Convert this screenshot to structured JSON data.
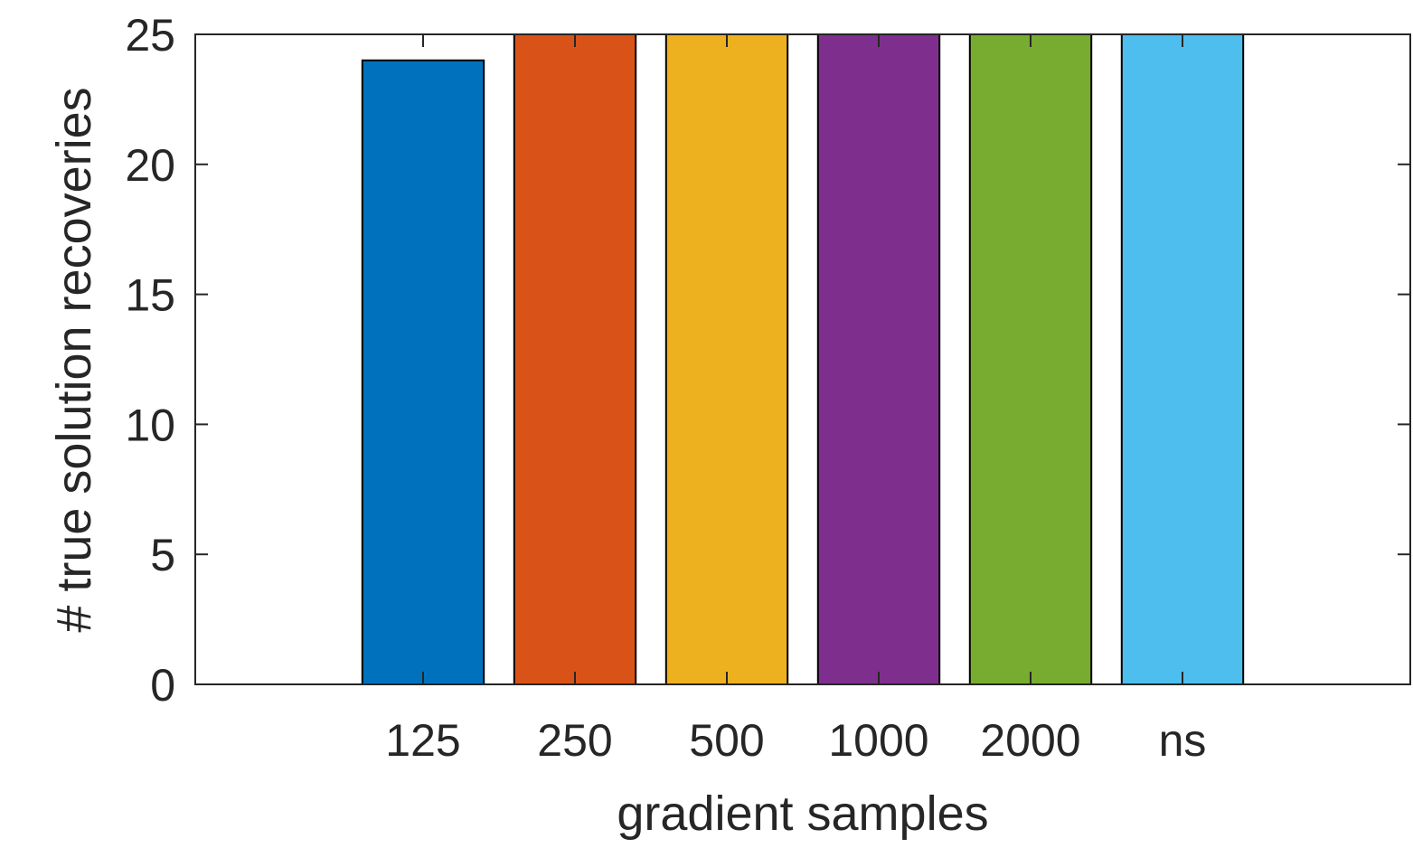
{
  "chart_data": {
    "type": "bar",
    "categories": [
      "125",
      "250",
      "500",
      "1000",
      "2000",
      "ns"
    ],
    "values": [
      24,
      25,
      25,
      25,
      25,
      25
    ],
    "colors": [
      "#0072BD",
      "#D95319",
      "#EDB120",
      "#7E2F8E",
      "#77AC30",
      "#4DBEEE"
    ],
    "xlabel": "gradient samples",
    "ylabel": "# true solution recoveries",
    "ylim": [
      0,
      25
    ],
    "yticks": [
      0,
      5,
      10,
      15,
      20,
      25
    ],
    "grid": false,
    "axis_color": "#262626",
    "bar_edge_color": "#000000"
  }
}
